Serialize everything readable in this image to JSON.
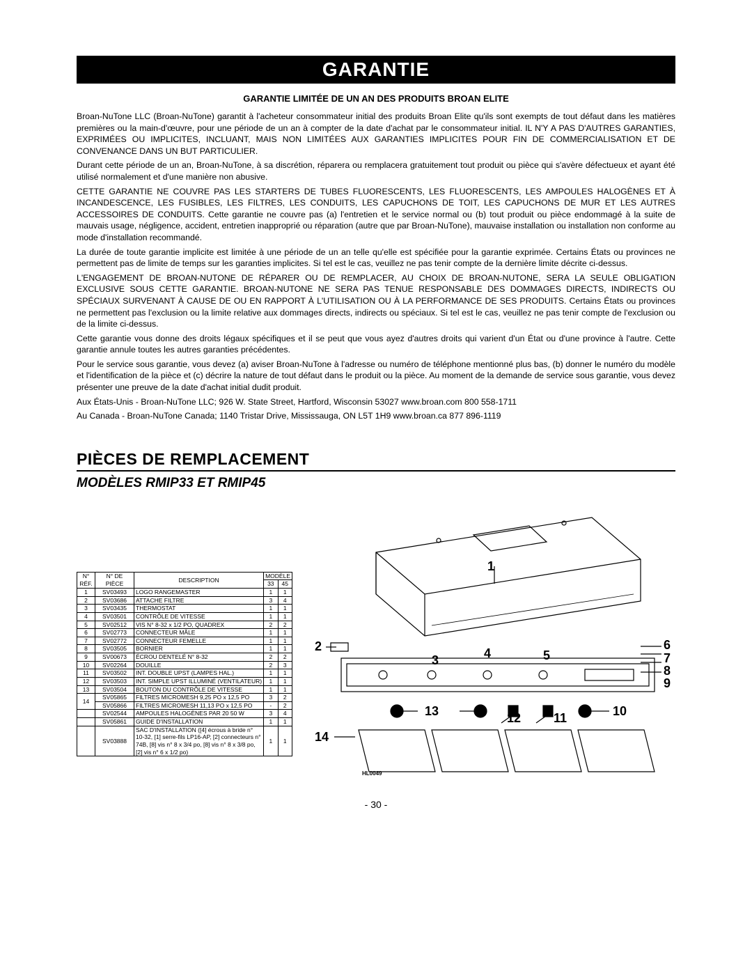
{
  "warranty": {
    "header": "GARANTIE",
    "subheader": "GARANTIE LIMITÉE DE UN AN DES PRODUITS BROAN ELITE",
    "paragraphs": [
      "Broan-NuTone LLC (Broan-NuTone) garantit à l'acheteur consommateur initial des produits Broan Elite qu'ils sont exempts de tout défaut dans les matières premières ou la main-d'œuvre, pour une période de un an à compter de la date d'achat par le consommateur initial. IL N'Y A PAS D'AUTRES GARANTIES, EXPRIMÉES OU IMPLICITES, INCLUANT, MAIS NON LIMITÉES AUX GARANTIES IMPLICITES POUR FIN DE COMMERCIALISATION ET DE CONVENANCE DANS UN BUT PARTICULIER.",
      "Durant cette période de un an, Broan-NuTone, à sa discrétion, réparera ou remplacera gratuitement tout produit ou pièce qui s'avère défectueux et ayant été utilisé normalement et d'une manière non abusive.",
      "CETTE GARANTIE NE COUVRE PAS LES STARTERS DE TUBES FLUORESCENTS, LES FLUORESCENTS, LES AMPOULES HALOGÈNES ET À INCANDESCENCE, LES FUSIBLES, LES FILTRES, LES CONDUITS, LES CAPUCHONS DE TOIT, LES CAPUCHONS DE MUR ET LES AUTRES ACCESSOIRES DE CONDUITS. Cette garantie ne couvre pas (a) l'entretien et le service normal ou (b) tout produit ou pièce endommagé à la suite de mauvais usage, négligence, accident, entretien inapproprié ou réparation (autre que par Broan-NuTone), mauvaise installation ou installation non conforme au mode d'installation recommandé.",
      "La durée de toute garantie implicite est limitée à une période de un an telle qu'elle est spécifiée pour la garantie exprimée. Certains États ou provinces ne permettent pas de limite de temps sur les garanties implicites. Si tel est le cas, veuillez ne pas tenir compte de la dernière limite décrite ci-dessus.",
      "L'ENGAGEMENT DE BROAN-NUTONE DE RÉPARER OU DE REMPLACER, AU CHOIX DE BROAN-NUTONE, SERA LA SEULE OBLIGATION EXCLUSIVE SOUS CETTE GARANTIE. BROAN-NUTONE NE SERA PAS TENUE RESPONSABLE DES DOMMAGES DIRECTS, INDIRECTS OU SPÉCIAUX SURVENANT À CAUSE DE OU EN RAPPORT À L'UTILISATION OU À LA PERFORMANCE DE SES PRODUITS. Certains États ou provinces ne permettent pas l'exclusion ou la limite relative aux dommages directs, indirects ou spéciaux. Si tel est le cas, veuillez ne pas tenir compte de l'exclusion ou de la limite ci-dessus.",
      "Cette garantie vous donne des droits légaux spécifiques et il se peut que vous ayez d'autres droits qui varient d'un État ou d'une province à l'autre. Cette garantie annule toutes les autres garanties précédentes.",
      "Pour le service sous garantie, vous devez (a) aviser Broan-NuTone à l'adresse ou numéro de téléphone mentionné plus bas, (b) donner le numéro du modèle et l'identification de la pièce et (c) décrire la nature de tout défaut dans le produit ou la pièce. Au moment de la demande de service sous garantie, vous devez présenter une preuve de la date d'achat initial dudit produit.",
      "Aux États-Unis - Broan-NuTone LLC; 926 W. State Street, Hartford, Wisconsin 53027    www.broan.com    800 558-1711",
      "Au Canada - Broan-NuTone Canada; 1140 Tristar Drive, Mississauga, ON  L5T 1H9    www.broan.ca    877 896-1119"
    ]
  },
  "replacement": {
    "title": "PIÈCES DE REMPLACEMENT",
    "models": "MODÈLES RMIP33 ET RMIP45"
  },
  "table": {
    "headers": {
      "ref1": "N°",
      "ref2": "RÉF.",
      "part1": "N° DE",
      "part2": "PIÈCE",
      "desc": "DESCRIPTION",
      "model": "MODÈLE",
      "m33": "33",
      "m45": "45"
    },
    "rows": [
      {
        "ref": "1",
        "part": "SV03493",
        "desc": "LOGO RANGEMASTER",
        "q33": "1",
        "q45": "1"
      },
      {
        "ref": "2",
        "part": "SV03686",
        "desc": "ATTACHE FILTRE",
        "q33": "3",
        "q45": "4"
      },
      {
        "ref": "3",
        "part": "SV03435",
        "desc": "THERMOSTAT",
        "q33": "1",
        "q45": "1"
      },
      {
        "ref": "4",
        "part": "SV03501",
        "desc": "CONTRÔLE DE VITESSE",
        "q33": "1",
        "q45": "1"
      },
      {
        "ref": "5",
        "part": "SV02512",
        "desc": "VIS N° 8-32 x 1/2 PO, QUADREX",
        "q33": "2",
        "q45": "2"
      },
      {
        "ref": "6",
        "part": "SV02773",
        "desc": "CONNECTEUR MÂLE",
        "q33": "1",
        "q45": "1"
      },
      {
        "ref": "7",
        "part": "SV02772",
        "desc": "CONNECTEUR FEMELLE",
        "q33": "1",
        "q45": "1"
      },
      {
        "ref": "8",
        "part": "SV03505",
        "desc": "BORNIER",
        "q33": "1",
        "q45": "1"
      },
      {
        "ref": "9",
        "part": "SV00673",
        "desc": "ÉCROU DENTELÉ N° 8-32",
        "q33": "2",
        "q45": "2"
      },
      {
        "ref": "10",
        "part": "SV02264",
        "desc": "DOUILLE",
        "q33": "2",
        "q45": "3"
      },
      {
        "ref": "11",
        "part": "SV03502",
        "desc": "INT. DOUBLE UPST (LAMPES HAL.)",
        "q33": "1",
        "q45": "1"
      },
      {
        "ref": "12",
        "part": "SV03503",
        "desc": "INT. SIMPLE UPST ILLUMINÉ (VENTILATEUR)",
        "q33": "1",
        "q45": "1"
      },
      {
        "ref": "13",
        "part": "SV03504",
        "desc": "BOUTON DU CONTRÔLE DE VITESSE",
        "q33": "1",
        "q45": "1"
      },
      {
        "ref": "14",
        "part": "SV05865",
        "desc": "FILTRES MICROMESH 9,25 PO x 12,5 PO",
        "q33": "3",
        "q45": "2",
        "rowspan14": true
      },
      {
        "ref": "",
        "part": "SV05866",
        "desc": "FILTRES MICROMESH 11,13 PO x 12,5 PO",
        "q33": "-",
        "q45": "2"
      },
      {
        "ref": "",
        "part": "SV02544",
        "desc": "AMPOULES HALOGÈNES PAR 20 50 W",
        "q33": "3",
        "q45": "4"
      },
      {
        "ref": "",
        "part": "SV05861",
        "desc": "GUIDE D'INSTALLATION",
        "q33": "1",
        "q45": "1"
      },
      {
        "ref": "",
        "part": "SV03888",
        "desc": "SAC D'INSTALLATION ([4] écrous à bride n° 10-32, [1] serre-fils LP16-AP, [2] connecteurs n° 74B, [8] vis n° 8 x 3/4 po, [8] vis n° 8 x 3/8 po, [2] vis n° 6 x 1/2 po)",
        "q33": "1",
        "q45": "1"
      }
    ]
  },
  "callouts": [
    "1",
    "2",
    "3",
    "4",
    "5",
    "6",
    "7",
    "8",
    "9",
    "10",
    "11",
    "12",
    "13",
    "14"
  ],
  "diagram_label": "HL0049",
  "page_number": "- 30 -"
}
